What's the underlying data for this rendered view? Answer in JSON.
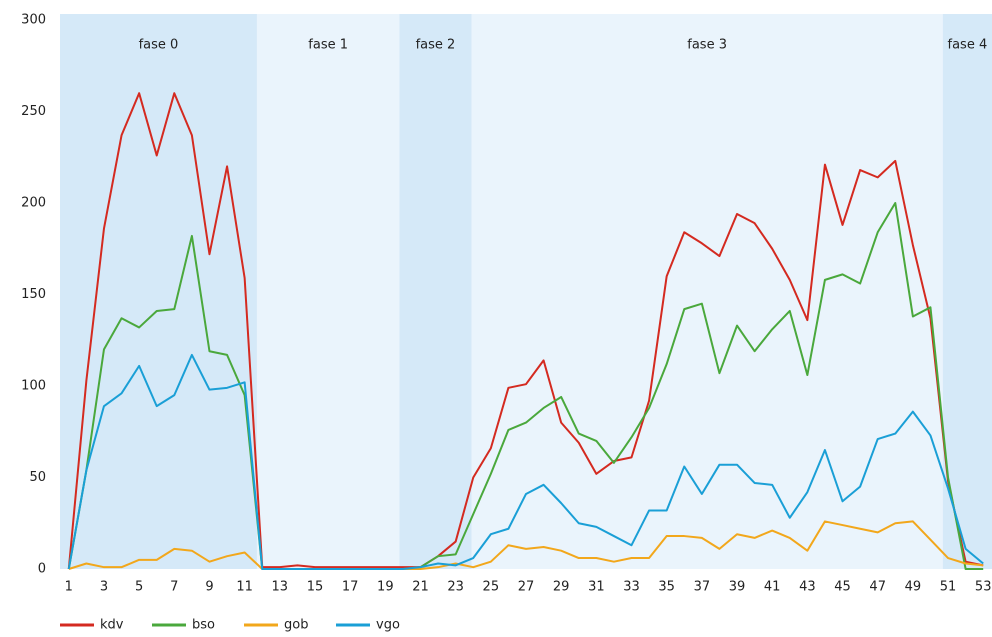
{
  "chart_data": {
    "type": "line",
    "x": [
      1,
      2,
      3,
      4,
      5,
      6,
      7,
      8,
      9,
      10,
      11,
      12,
      13,
      14,
      15,
      16,
      17,
      18,
      19,
      20,
      21,
      22,
      23,
      24,
      25,
      26,
      27,
      28,
      29,
      30,
      31,
      32,
      33,
      34,
      35,
      36,
      37,
      38,
      39,
      40,
      41,
      42,
      43,
      44,
      45,
      46,
      47,
      48,
      49,
      50,
      51,
      52,
      53
    ],
    "xlim": [
      0.5,
      53.5
    ],
    "xticks": [
      1,
      3,
      5,
      7,
      9,
      11,
      13,
      15,
      17,
      19,
      21,
      23,
      25,
      27,
      29,
      31,
      33,
      35,
      37,
      39,
      41,
      43,
      45,
      47,
      49,
      51,
      53
    ],
    "ylim": [
      0,
      300
    ],
    "yticks": [
      0,
      50,
      100,
      150,
      200,
      250,
      300
    ],
    "phases": [
      {
        "label": "fase 0",
        "start": 0.5,
        "end": 11.7,
        "color": "#d5e9f8"
      },
      {
        "label": "fase 1",
        "start": 11.7,
        "end": 19.8,
        "color": "#eaf4fc"
      },
      {
        "label": "fase 2",
        "start": 19.8,
        "end": 23.9,
        "color": "#d5e9f8"
      },
      {
        "label": "fase 3",
        "start": 23.9,
        "end": 50.7,
        "color": "#eaf4fc"
      },
      {
        "label": "fase 4",
        "start": 50.7,
        "end": 53.5,
        "color": "#d5e9f8"
      }
    ],
    "series": [
      {
        "name": "kdv",
        "color": "#d42a20",
        "values": [
          0,
          103,
          186,
          237,
          260,
          226,
          260,
          237,
          172,
          220,
          159,
          1,
          1,
          2,
          1,
          1,
          1,
          1,
          1,
          1,
          1,
          7,
          15,
          50,
          66,
          99,
          101,
          114,
          80,
          69,
          52,
          59,
          61,
          92,
          160,
          184,
          178,
          171,
          194,
          189,
          175,
          158,
          136,
          221,
          188,
          218,
          214,
          223,
          177,
          137,
          48,
          4,
          2
        ]
      },
      {
        "name": "bso",
        "color": "#4aa83c",
        "values": [
          0,
          54,
          120,
          137,
          132,
          141,
          142,
          182,
          119,
          117,
          95,
          0,
          0,
          0,
          0,
          0,
          0,
          0,
          0,
          0,
          1,
          7,
          8,
          30,
          52,
          76,
          80,
          88,
          94,
          74,
          70,
          58,
          72,
          88,
          112,
          142,
          145,
          107,
          133,
          119,
          131,
          141,
          106,
          158,
          161,
          156,
          184,
          200,
          138,
          143,
          50,
          0,
          0
        ]
      },
      {
        "name": "gob",
        "color": "#f2a71b",
        "values": [
          0,
          3,
          1,
          1,
          5,
          5,
          11,
          10,
          4,
          7,
          9,
          0,
          0,
          0,
          0,
          0,
          0,
          0,
          0,
          0,
          0,
          1,
          3,
          1,
          4,
          13,
          11,
          12,
          10,
          6,
          6,
          4,
          6,
          6,
          18,
          18,
          17,
          11,
          19,
          17,
          21,
          17,
          10,
          26,
          24,
          22,
          20,
          25,
          26,
          16,
          6,
          3,
          2
        ]
      },
      {
        "name": "vgo",
        "color": "#1a9fd6",
        "values": [
          0,
          54,
          89,
          96,
          111,
          89,
          95,
          117,
          98,
          99,
          102,
          0,
          0,
          0,
          0,
          0,
          0,
          0,
          0,
          0,
          1,
          3,
          2,
          6,
          19,
          22,
          41,
          46,
          36,
          25,
          23,
          18,
          13,
          32,
          32,
          56,
          41,
          57,
          57,
          47,
          46,
          28,
          42,
          65,
          37,
          45,
          71,
          74,
          86,
          73,
          44,
          11,
          3
        ]
      }
    ]
  }
}
